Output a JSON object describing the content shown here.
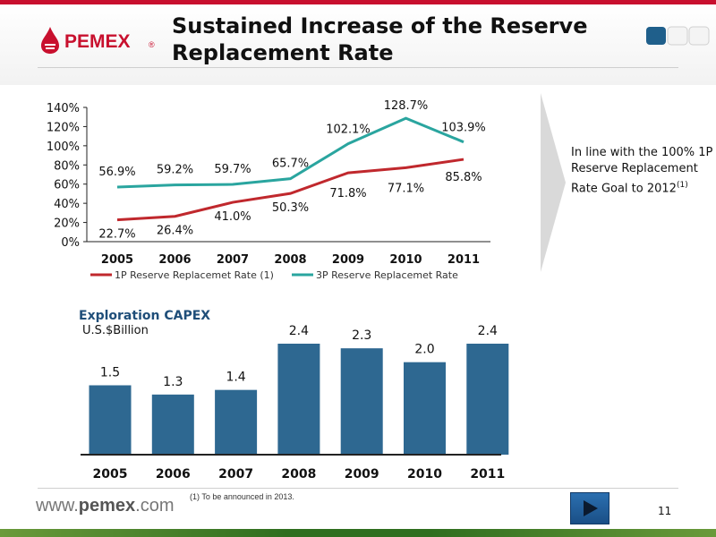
{
  "header": {
    "title_line1": "Sustained Increase of the Reserve",
    "title_line2": "Replacement Rate",
    "logo_text": "PEMEX",
    "logo_mark": "®"
  },
  "colors": {
    "red_series": "#c0282d",
    "teal_series": "#2aa59f",
    "bar_fill": "#2e6891",
    "brand_red": "#c8102e"
  },
  "chart_data": [
    {
      "type": "line",
      "x": [
        "2005",
        "2006",
        "2007",
        "2008",
        "2009",
        "2010",
        "2011"
      ],
      "ylim": [
        0,
        140
      ],
      "yticks": [
        "0%",
        "20%",
        "40%",
        "60%",
        "80%",
        "100%",
        "120%",
        "140%"
      ],
      "ytick_values": [
        0,
        20,
        40,
        60,
        80,
        100,
        120,
        140
      ],
      "grid": false,
      "legend": "bottom",
      "series": [
        {
          "name": "1P Reserve Replacemet Rate (1)",
          "values": [
            22.7,
            26.4,
            41.0,
            50.3,
            71.8,
            77.1,
            85.8
          ],
          "labels": [
            "22.7%",
            "26.4%",
            "41.0%",
            "50.3%",
            "71.8%",
            "77.1%",
            "85.8%"
          ],
          "color": "#c0282d"
        },
        {
          "name": "3P Reserve Replacemet Rate",
          "values": [
            56.9,
            59.2,
            59.7,
            65.7,
            102.1,
            128.7,
            103.9
          ],
          "labels": [
            "56.9%",
            "59.2%",
            "59.7%",
            "65.7%",
            "102.1%",
            "128.7%",
            "103.9%"
          ],
          "color": "#2aa59f"
        }
      ]
    },
    {
      "type": "bar",
      "title": "Exploration CAPEX",
      "subtitle": "U.S.$Billion",
      "categories": [
        "2005",
        "2006",
        "2007",
        "2008",
        "2009",
        "2010",
        "2011"
      ],
      "values": [
        1.5,
        1.3,
        1.4,
        2.4,
        2.3,
        2.0,
        2.4
      ],
      "labels": [
        "1.5",
        "1.3",
        "1.4",
        "2.4",
        "2.3",
        "2.0",
        "2.4"
      ],
      "ylim": [
        0,
        2.4
      ],
      "color": "#2e6891"
    }
  ],
  "side_note": {
    "text": "In line with the 100% 1P Reserve Replacement Rate Goal to 2012",
    "superscript": "(1)"
  },
  "footer": {
    "website_prefix": "www.",
    "website_brand": "pemex",
    "website_suffix": ".com",
    "footnote": "(1)    To be announced in 2013.",
    "page_number": "11"
  }
}
